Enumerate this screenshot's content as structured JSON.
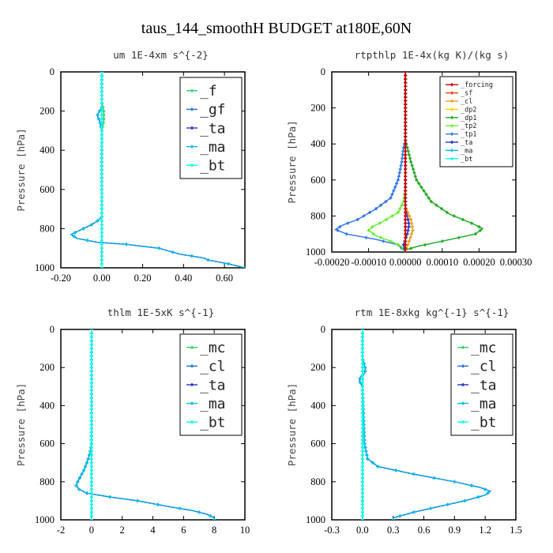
{
  "figure_title": "taus_144_smoothH  BUDGET at180E,60N",
  "colors": {
    "forcing": "#cc0000",
    "sf": "#e8401c",
    "cl": "#f0a020",
    "dp2": "#ffd000",
    "dp1": "#22aa22",
    "tp2": "#66ee33",
    "tp1": "#3377ee",
    "ta": "#2233cc",
    "ma": "#00bbee",
    "bt": "#00ffee",
    "f": "#33cc66",
    "gf": "#1f6fd6",
    "mc": "#33cc55"
  },
  "chart_data": [
    {
      "type": "line",
      "title": "um   1E-4xm s^{-2}",
      "ylabel": "Pressure [hPa]",
      "xlim": [
        -0.2,
        0.7
      ],
      "ylim": [
        1000,
        0
      ],
      "xticks": [
        "-0.20",
        "0.00",
        "0.20",
        "0.40",
        "0.60"
      ],
      "xtick_values": [
        -0.2,
        0.0,
        0.2,
        0.4,
        0.6
      ],
      "yticks": [
        "0",
        "200",
        "400",
        "600",
        "800",
        "1000"
      ],
      "legend": {
        "position": "top-right",
        "size": "large",
        "entries": [
          "_f",
          "_gf",
          "_ta",
          "_ma",
          "_bt"
        ]
      },
      "series": [
        {
          "name": "_gf",
          "color_key": "gf",
          "x": [
            0,
            0,
            0,
            -0.01,
            -0.02,
            -0.02,
            -0.01,
            0,
            0,
            0,
            0,
            0,
            0,
            0,
            0,
            -0.02,
            -0.05,
            -0.09,
            -0.13,
            -0.15,
            -0.12,
            -0.02,
            0.12,
            0.28,
            0.38,
            0.5,
            0.52,
            0.62,
            0.7
          ],
          "y": [
            0,
            100,
            180,
            200,
            215,
            230,
            250,
            300,
            400,
            500,
            600,
            650,
            700,
            720,
            740,
            760,
            780,
            800,
            820,
            830,
            850,
            870,
            880,
            900,
            930,
            950,
            960,
            980,
            1000
          ]
        },
        {
          "name": "_ma",
          "color_key": "ma",
          "x": [
            0,
            0,
            0,
            -0.01,
            -0.02,
            -0.02,
            -0.01,
            0,
            0,
            0,
            0,
            0,
            0,
            0,
            0,
            -0.02,
            -0.05,
            -0.09,
            -0.13,
            -0.15,
            -0.12,
            -0.02,
            0.12,
            0.28,
            0.38,
            0.5,
            0.52,
            0.62,
            0.7
          ],
          "y": [
            0,
            100,
            180,
            200,
            215,
            230,
            250,
            300,
            400,
            500,
            600,
            650,
            700,
            720,
            740,
            760,
            780,
            800,
            820,
            830,
            850,
            870,
            880,
            900,
            930,
            950,
            960,
            980,
            1000
          ]
        },
        {
          "name": "_f",
          "color_key": "f",
          "x": [
            0,
            0,
            0.01,
            0.01,
            0,
            0,
            0
          ],
          "y": [
            0,
            150,
            200,
            250,
            300,
            600,
            1000
          ]
        },
        {
          "name": "_bt",
          "color_key": "bt",
          "x": [
            0,
            0
          ],
          "y": [
            0,
            1000
          ]
        }
      ]
    },
    {
      "type": "line",
      "title": "rtpthlp   1E-4x(kg K)/(kg s)",
      "ylabel": "Pressure [hPa]",
      "xlim": [
        -0.0002,
        0.0003
      ],
      "ylim": [
        1000,
        0
      ],
      "xticks": [
        "-0.00020",
        "-0.00010",
        "0.00000",
        "0.00010",
        "0.00020",
        "0.00030"
      ],
      "xtick_values": [
        -0.0002,
        -0.0001,
        0.0,
        0.0001,
        0.0002,
        0.0003
      ],
      "yticks": [
        "0",
        "200",
        "400",
        "600",
        "800",
        "1000"
      ],
      "legend": {
        "position": "top-right",
        "size": "small",
        "entries": [
          "_forcing",
          "_sf",
          "_cl",
          "_dp2",
          "_dp1",
          "_tp2",
          "_tp1",
          "_ta",
          "_ma",
          "_bt"
        ]
      },
      "series": [
        {
          "name": "_dp1",
          "color_key": "dp1",
          "x": [
            0,
            0,
            5e-06,
            1.5e-05,
            3e-05,
            7e-05,
            0.00012,
            0.00018,
            0.00021,
            0.00019,
            0.0001,
            3e-05,
            0,
            0
          ],
          "y": [
            0,
            380,
            420,
            500,
            600,
            720,
            790,
            840,
            870,
            900,
            940,
            970,
            990,
            1000
          ]
        },
        {
          "name": "_tp1",
          "color_key": "tp1",
          "x": [
            0,
            0,
            -5e-06,
            -1e-05,
            -2e-05,
            -4e-05,
            -8e-05,
            -0.00013,
            -0.00017,
            -0.00019,
            -0.00016,
            -8e-05,
            -2e-05,
            0
          ],
          "y": [
            0,
            380,
            420,
            500,
            600,
            700,
            760,
            820,
            850,
            875,
            900,
            930,
            960,
            1000
          ]
        },
        {
          "name": "_tp2",
          "color_key": "tp2",
          "x": [
            0,
            0,
            -5e-06,
            -2e-05,
            -6e-05,
            -9e-05,
            -0.0001,
            -8e-05,
            -4e-05,
            -1e-05,
            0
          ],
          "y": [
            0,
            650,
            720,
            780,
            830,
            860,
            880,
            910,
            940,
            970,
            1000
          ]
        },
        {
          "name": "_ta",
          "color_key": "ta",
          "x": [
            0,
            0,
            5e-06,
            1e-05,
            5e-06,
            0,
            -5e-06,
            0
          ],
          "y": [
            0,
            750,
            800,
            850,
            900,
            930,
            960,
            1000
          ]
        },
        {
          "name": "_cl",
          "color_key": "cl",
          "x": [
            0,
            0,
            1.5e-05,
            2e-05,
            1e-05,
            0
          ],
          "y": [
            0,
            750,
            820,
            880,
            940,
            1000
          ]
        },
        {
          "name": "_ma",
          "color_key": "ma",
          "x": [
            0,
            0
          ],
          "y": [
            0,
            1000
          ]
        },
        {
          "name": "_sf",
          "color_key": "sf",
          "x": [
            0,
            0
          ],
          "y": [
            0,
            1000
          ]
        },
        {
          "name": "_forcing",
          "color_key": "forcing",
          "x": [
            0,
            0
          ],
          "y": [
            0,
            1000
          ]
        }
      ]
    },
    {
      "type": "line",
      "title": "thlm   1E-5xK s^{-1}",
      "ylabel": "Pressure [hPa]",
      "xlim": [
        -2,
        10
      ],
      "ylim": [
        1000,
        0
      ],
      "xticks": [
        "-2",
        "0",
        "2",
        "4",
        "6",
        "8",
        "10"
      ],
      "xtick_values": [
        -2,
        0,
        2,
        4,
        6,
        8,
        10
      ],
      "yticks": [
        "0",
        "200",
        "400",
        "600",
        "800",
        "1000"
      ],
      "legend": {
        "position": "top-right",
        "size": "large",
        "entries": [
          "_mc",
          "_cl",
          "_ta",
          "_ma",
          "_bt"
        ]
      },
      "series": [
        {
          "name": "_cl",
          "color_key": "gf",
          "x": [
            0,
            0,
            -0.1,
            -0.3,
            -0.5,
            -0.7,
            -0.9,
            -1.0,
            -0.8,
            -0.3,
            1.2,
            3.0,
            5.0,
            6.5,
            7.5,
            8.0,
            8.0
          ],
          "y": [
            0,
            600,
            650,
            700,
            740,
            770,
            800,
            820,
            840,
            860,
            880,
            900,
            930,
            950,
            970,
            990,
            1000
          ]
        },
        {
          "name": "_ma",
          "color_key": "ma",
          "x": [
            0,
            0,
            -0.1,
            -0.3,
            -0.5,
            -0.7,
            -0.9,
            -1.0,
            -0.8,
            -0.3,
            1.2,
            3.0,
            5.0,
            6.5,
            7.5,
            8.0,
            8.0
          ],
          "y": [
            0,
            600,
            650,
            700,
            740,
            770,
            800,
            820,
            840,
            860,
            880,
            900,
            930,
            950,
            970,
            990,
            1000
          ]
        },
        {
          "name": "_mc",
          "color_key": "mc",
          "x": [
            0,
            0
          ],
          "y": [
            0,
            1000
          ]
        },
        {
          "name": "_bt",
          "color_key": "bt",
          "x": [
            0,
            0
          ],
          "y": [
            0,
            1000
          ]
        }
      ]
    },
    {
      "type": "line",
      "title": "rtm   1E-8xkg kg^{-1} s^{-1}",
      "ylabel": "Pressure [hPa]",
      "xlim": [
        -0.3,
        1.5
      ],
      "ylim": [
        1000,
        0
      ],
      "xticks": [
        "-0.3",
        "0.0",
        "0.3",
        "0.6",
        "0.9",
        "1.2",
        "1.5"
      ],
      "xtick_values": [
        -0.3,
        0.0,
        0.3,
        0.6,
        0.9,
        1.2,
        1.5
      ],
      "yticks": [
        "0",
        "200",
        "400",
        "600",
        "800",
        "1000"
      ],
      "legend": {
        "position": "top-right",
        "size": "large",
        "entries": [
          "_mc",
          "_cl",
          "_ta",
          "_ma",
          "_bt"
        ]
      },
      "series": [
        {
          "name": "_cl",
          "color_key": "gf",
          "x": [
            0,
            0,
            0.02,
            0.03,
            0.02,
            -0.02,
            -0.03,
            0,
            0.02,
            0.05,
            0.15,
            0.5,
            0.9,
            1.15,
            1.25,
            1.2,
            1.0,
            0.75,
            0.5,
            0.3,
            0.3
          ],
          "y": [
            0,
            150,
            190,
            210,
            230,
            250,
            270,
            300,
            600,
            680,
            720,
            760,
            800,
            830,
            850,
            870,
            900,
            930,
            960,
            990,
            1000
          ]
        },
        {
          "name": "_ma",
          "color_key": "ma",
          "x": [
            0,
            0,
            0.02,
            0.03,
            0.02,
            -0.02,
            -0.03,
            0,
            0.02,
            0.05,
            0.15,
            0.5,
            0.9,
            1.15,
            1.25,
            1.2,
            1.0,
            0.75,
            0.5,
            0.3,
            0.3
          ],
          "y": [
            0,
            150,
            190,
            210,
            230,
            250,
            270,
            300,
            600,
            680,
            720,
            760,
            800,
            830,
            850,
            870,
            900,
            930,
            960,
            990,
            1000
          ]
        },
        {
          "name": "_mc",
          "color_key": "mc",
          "x": [
            0,
            0
          ],
          "y": [
            0,
            1000
          ]
        },
        {
          "name": "_bt",
          "color_key": "bt",
          "x": [
            0,
            0
          ],
          "y": [
            0,
            1000
          ]
        }
      ]
    }
  ]
}
